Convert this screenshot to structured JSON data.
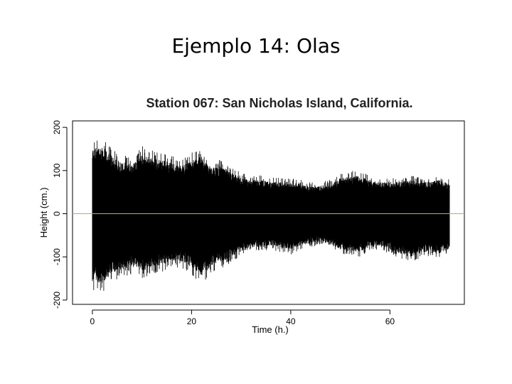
{
  "slide": {
    "title": "Ejemplo 14: Olas"
  },
  "chart_data": {
    "type": "line",
    "title": "Station 067: San Nicholas Island, California.",
    "xlabel": "Time (h.)",
    "ylabel": "Height (cm.)",
    "xlim": [
      -4,
      75
    ],
    "ylim": [
      -210,
      215
    ],
    "xticks": [
      0,
      20,
      40,
      60
    ],
    "yticks": [
      -200,
      -100,
      0,
      100,
      200
    ],
    "grid": false,
    "reference_line": {
      "y": 0,
      "color": "#c8a46e"
    },
    "series_color": "#000000",
    "series": [
      {
        "x": [
          0,
          2,
          4,
          6,
          8,
          10,
          12,
          14,
          16,
          18,
          20,
          22,
          24,
          26,
          28,
          30,
          32,
          34,
          36,
          38,
          40,
          42,
          44,
          46,
          48,
          50,
          52,
          54,
          56,
          58,
          60,
          62,
          64,
          66,
          68,
          70,
          72
        ],
        "upper": [
          165,
          170,
          145,
          130,
          125,
          150,
          140,
          135,
          130,
          120,
          135,
          145,
          115,
          120,
          105,
          90,
          85,
          85,
          80,
          80,
          80,
          75,
          70,
          70,
          75,
          90,
          95,
          95,
          85,
          80,
          80,
          80,
          85,
          80,
          80,
          85,
          75
        ],
        "lower": [
          -170,
          -175,
          -150,
          -140,
          -135,
          -145,
          -135,
          -130,
          -120,
          -120,
          -135,
          -160,
          -130,
          -120,
          -110,
          -90,
          -85,
          -85,
          -80,
          -85,
          -90,
          -80,
          -75,
          -70,
          -80,
          -90,
          -95,
          -95,
          -85,
          -80,
          -90,
          -100,
          -110,
          -100,
          -95,
          -100,
          -90
        ]
      }
    ]
  }
}
